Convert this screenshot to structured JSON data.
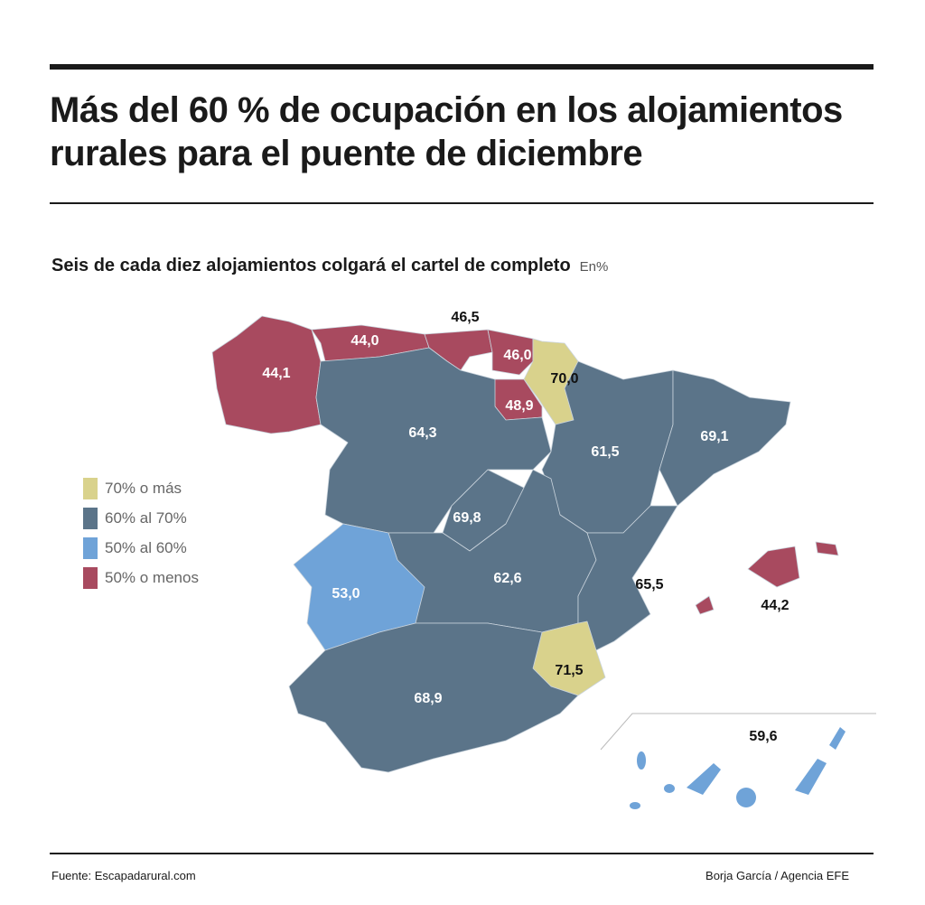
{
  "title": "Más del 60 % de ocupación en los alojamientos rurales para el puente de diciembre",
  "subtitle": "Seis de cada diez alojamientos colgará el cartel de completo",
  "unit": "En%",
  "colors": {
    "c70": "#d9d28c",
    "c60": "#5b7489",
    "c50": "#6fa3d8",
    "clow": "#a84a5f"
  },
  "legend": [
    {
      "label": "70% o más",
      "color": "#d9d28c"
    },
    {
      "label": "60% al 70%",
      "color": "#5b7489"
    },
    {
      "label": "50% al 60%",
      "color": "#6fa3d8"
    },
    {
      "label": "50% o menos",
      "color": "#a84a5f"
    }
  ],
  "regions": {
    "r1": "44,1",
    "r2": "44,0",
    "r3": "46,5",
    "r4": "46,0",
    "r5": "70,0",
    "r6": "48,9",
    "r7": "64,3",
    "r8": "61,5",
    "r9": "69,1",
    "r10": "69,8",
    "r11": "62,6",
    "r12": "53,0",
    "r13": "65,5",
    "r14": "71,5",
    "r15": "68,9",
    "r16": "44,2",
    "r17": "59,6"
  },
  "footer": {
    "source": "Fuente: Escapadarural.com",
    "credit": "Borja García / Agencia EFE"
  }
}
